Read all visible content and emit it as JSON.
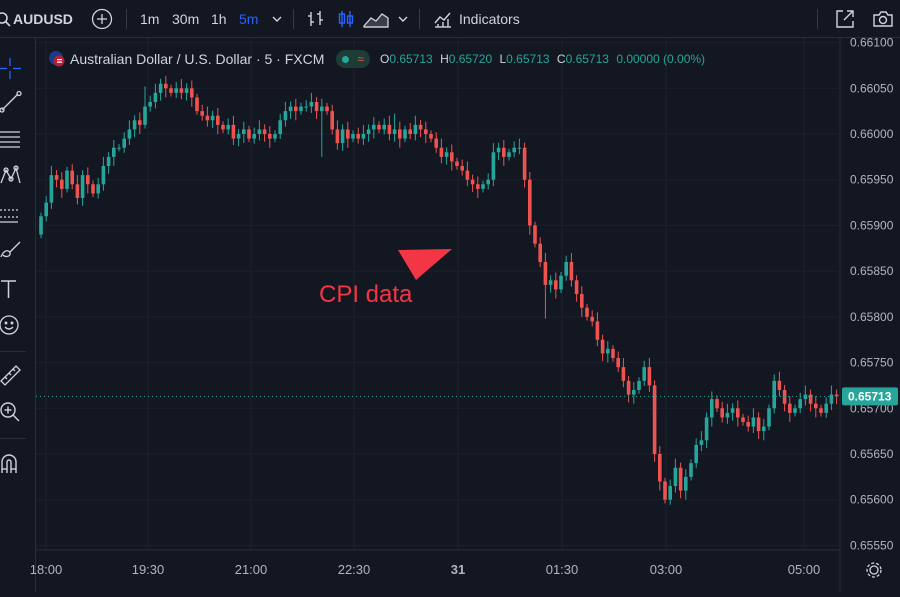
{
  "toolbar": {
    "symbol": "AUDUSD",
    "intervals": [
      "1m",
      "30m",
      "1h",
      "5m"
    ],
    "active_interval": "5m",
    "indicators_label": "Indicators"
  },
  "legend": {
    "title": "Australian Dollar / U.S. Dollar · 5 · FXCM",
    "o_label": "O",
    "o_value": "0.65713",
    "h_label": "H",
    "h_value": "0.65720",
    "l_label": "L",
    "l_value": "0.65713",
    "c_label": "C",
    "c_value": "0.65713",
    "change": "0.00000 (0.00%)"
  },
  "colors": {
    "up": "#26a69a",
    "down": "#ef5350",
    "annotation": "#f23645",
    "background": "#131722"
  },
  "chart_data": {
    "type": "candlestick",
    "x_tick_labels": [
      "18:00",
      "19:30",
      "21:00",
      "22:30",
      "31",
      "01:30",
      "03:00",
      "05:00"
    ],
    "y_tick_labels": [
      "0.66100",
      "0.66050",
      "0.66000",
      "0.65950",
      "0.65900",
      "0.65850",
      "0.65800",
      "0.65750",
      "0.65700",
      "0.65650",
      "0.65600",
      "0.65550"
    ],
    "ylim": [
      0.65545,
      0.66105
    ],
    "last_price": "0.65713",
    "annotation": "CPI data",
    "closes": [
      0.6591,
      0.65925,
      0.65955,
      0.6595,
      0.6594,
      0.6596,
      0.65945,
      0.6593,
      0.65955,
      0.65945,
      0.65935,
      0.65945,
      0.65965,
      0.65975,
      0.65985,
      0.65985,
      0.65995,
      0.66005,
      0.66015,
      0.6601,
      0.6603,
      0.66035,
      0.66045,
      0.66055,
      0.6605,
      0.66045,
      0.6605,
      0.66045,
      0.6605,
      0.6604,
      0.66025,
      0.6602,
      0.66015,
      0.6602,
      0.6601,
      0.66005,
      0.6601,
      0.65995,
      0.66,
      0.66005,
      0.65995,
      0.66,
      0.66005,
      0.66,
      0.65995,
      0.66,
      0.66015,
      0.66025,
      0.6603,
      0.66025,
      0.6603,
      0.6603,
      0.66035,
      0.66025,
      0.6603,
      0.66025,
      0.66005,
      0.6599,
      0.66005,
      0.65995,
      0.66,
      0.65995,
      0.66,
      0.66005,
      0.6601,
      0.66005,
      0.6601,
      0.66,
      0.66005,
      0.65995,
      0.66005,
      0.66,
      0.6601,
      0.66005,
      0.66,
      0.65995,
      0.65985,
      0.65975,
      0.6598,
      0.6597,
      0.65965,
      0.6596,
      0.6595,
      0.65945,
      0.6594,
      0.65945,
      0.6595,
      0.6598,
      0.65985,
      0.65975,
      0.6598,
      0.65985,
      0.65985,
      0.6595,
      0.659,
      0.6588,
      0.6586,
      0.65835,
      0.6584,
      0.6583,
      0.65845,
      0.6586,
      0.6584,
      0.65825,
      0.6581,
      0.658,
      0.65795,
      0.65775,
      0.6576,
      0.65765,
      0.65755,
      0.65745,
      0.6573,
      0.65715,
      0.6572,
      0.6573,
      0.65745,
      0.65725,
      0.6565,
      0.6562,
      0.656,
      0.65615,
      0.65635,
      0.6561,
      0.65625,
      0.6564,
      0.6566,
      0.65665,
      0.6569,
      0.6571,
      0.657,
      0.6569,
      0.65695,
      0.657,
      0.6569,
      0.65685,
      0.6568,
      0.6569,
      0.65675,
      0.6568,
      0.657,
      0.6573,
      0.6572,
      0.65705,
      0.65695,
      0.657,
      0.6571,
      0.65715,
      0.65705,
      0.657,
      0.65695,
      0.65705,
      0.65715,
      0.65713
    ]
  }
}
